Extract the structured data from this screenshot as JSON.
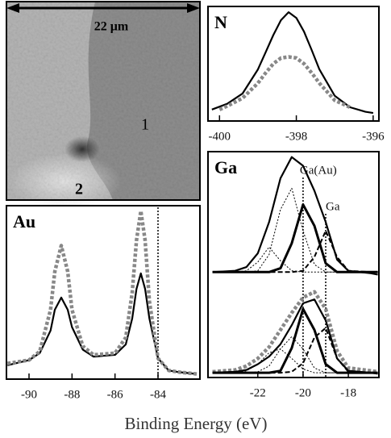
{
  "image": {
    "scale_bar": "22 μm",
    "labels": [
      "1",
      "2"
    ]
  },
  "xlabel": "Binding Energy (eV)",
  "chart_data": [
    {
      "type": "line",
      "title": "N",
      "xlim": [
        -400.3,
        -395.85
      ],
      "ylim": [
        0,
        1
      ],
      "xticks": [
        -400,
        -398,
        -396
      ],
      "series": [
        {
          "color": "#000000",
          "style": "solid",
          "x": [
            -400.2,
            -399.8,
            -399.4,
            -399,
            -398.8,
            -398.6,
            -398.4,
            -398.2,
            -398,
            -397.8,
            -397.6,
            -397.4,
            -397,
            -396.6,
            -396.2,
            -396
          ],
          "values": [
            0.1,
            0.15,
            0.24,
            0.45,
            0.6,
            0.75,
            0.88,
            0.95,
            0.9,
            0.78,
            0.62,
            0.45,
            0.22,
            0.12,
            0.08,
            0.07
          ]
        },
        {
          "color": "#888888",
          "style": "squares",
          "x": [
            -400,
            -399.8,
            -399.4,
            -399,
            -398.8,
            -398.6,
            -398.4,
            -398.2,
            -398,
            -397.8,
            -397.6,
            -397.4,
            -397,
            -396.6
          ],
          "values": [
            0.1,
            0.13,
            0.2,
            0.33,
            0.42,
            0.5,
            0.55,
            0.56,
            0.55,
            0.5,
            0.42,
            0.33,
            0.18,
            0.12
          ]
        }
      ]
    },
    {
      "type": "line",
      "title": "Au",
      "xlim": [
        -91.05,
        -82.05
      ],
      "ylim": [
        0,
        1
      ],
      "xticks": [
        -90,
        -88,
        -86,
        -84
      ],
      "vlines": [
        -84
      ],
      "series": [
        {
          "color": "#000000",
          "style": "solid",
          "x": [
            -91,
            -90,
            -89.5,
            -89,
            -88.8,
            -88.5,
            -88.2,
            -88,
            -87.5,
            -87,
            -86,
            -85.5,
            -85.2,
            -85,
            -84.8,
            -84.6,
            -84.4,
            -84,
            -83.5,
            -83,
            -82.2
          ],
          "values": [
            0.08,
            0.11,
            0.15,
            0.28,
            0.4,
            0.47,
            0.4,
            0.3,
            0.17,
            0.13,
            0.14,
            0.2,
            0.35,
            0.52,
            0.61,
            0.52,
            0.35,
            0.12,
            0.05,
            0.04,
            0.03
          ]
        },
        {
          "color": "#888888",
          "style": "squares",
          "x": [
            -91,
            -90,
            -89.5,
            -89,
            -88.8,
            -88.5,
            -88.2,
            -88,
            -87.5,
            -87,
            -86,
            -85.5,
            -85.2,
            -85,
            -84.8,
            -84.6,
            -84.4,
            -84,
            -83.5,
            -83,
            -82.2
          ],
          "values": [
            0.09,
            0.11,
            0.16,
            0.4,
            0.62,
            0.77,
            0.62,
            0.4,
            0.19,
            0.14,
            0.15,
            0.24,
            0.5,
            0.8,
            0.97,
            0.8,
            0.45,
            0.12,
            0.05,
            0.04,
            0.03
          ]
        }
      ]
    },
    {
      "type": "line",
      "title": "Ga",
      "xlim": [
        -24.2,
        -16.65
      ],
      "ylim": [
        0,
        1
      ],
      "annotations": [
        {
          "text": "Ga(Au)",
          "x": -20
        },
        {
          "text": "Ga",
          "x": -19
        }
      ],
      "series": [
        {
          "color": "#000000",
          "style": "dotted",
          "x": [
            -24,
            -23,
            -22.5,
            -22,
            -21.5,
            -21,
            -20.5,
            -20,
            -19.5,
            -19,
            -18.5,
            -18,
            -17,
            -16.7
          ],
          "values": [
            0.05,
            0.05,
            0.06,
            0.13,
            0.25,
            0.14,
            0.06,
            0.05,
            0.05,
            0.05,
            0.05,
            0.05,
            0.05,
            0.05
          ]
        },
        {
          "color": "#000000",
          "style": "dotted",
          "x": [
            -24,
            -23,
            -22.5,
            -22,
            -21.5,
            -21,
            -20.5,
            -20,
            -19.5,
            -19,
            -18.5,
            -18,
            -17,
            -16.7
          ],
          "values": [
            0.05,
            0.05,
            0.05,
            0.06,
            0.19,
            0.55,
            0.72,
            0.38,
            0.11,
            0.05,
            0.05,
            0.05,
            0.05,
            0.05
          ]
        },
        {
          "color": "#000000",
          "style": "thick",
          "x": [
            -24,
            -23,
            -22.5,
            -22,
            -21.5,
            -21,
            -20.5,
            -20,
            -19.5,
            -19,
            -18.5,
            -18,
            -17,
            -16.7
          ],
          "values": [
            0.05,
            0.05,
            0.05,
            0.05,
            0.05,
            0.08,
            0.28,
            0.59,
            0.42,
            0.12,
            0.05,
            0.05,
            0.05,
            0.05
          ]
        },
        {
          "color": "#000000",
          "style": "dashed",
          "x": [
            -24,
            -23,
            -22.5,
            -22,
            -21.5,
            -21,
            -20.5,
            -20,
            -19.5,
            -19,
            -18.5,
            -18,
            -17,
            -16.7
          ],
          "values": [
            0.05,
            0.05,
            0.05,
            0.05,
            0.05,
            0.05,
            0.05,
            0.06,
            0.17,
            0.38,
            0.17,
            0.06,
            0.05,
            0.05
          ]
        },
        {
          "color": "#000000",
          "style": "solid",
          "x": [
            -24,
            -23,
            -22.5,
            -22,
            -21.5,
            -21,
            -20.5,
            -20,
            -19.5,
            -19,
            -18.5,
            -18,
            -17,
            -16.7
          ],
          "values": [
            0.05,
            0.06,
            0.09,
            0.2,
            0.45,
            0.8,
            0.97,
            0.9,
            0.7,
            0.45,
            0.15,
            0.06,
            0.04,
            0.03
          ]
        }
      ]
    },
    {
      "type": "line",
      "xlim": [
        -24.2,
        -16.65
      ],
      "ylim": [
        0,
        1
      ],
      "xticks": [
        -22,
        -20,
        -18
      ],
      "series": [
        {
          "color": "#888888",
          "style": "squares",
          "x": [
            -24,
            -23,
            -22.5,
            -22,
            -21.5,
            -21,
            -20.5,
            -20,
            -19.5,
            -19,
            -18.5,
            -18,
            -17,
            -16.7
          ],
          "values": [
            0.06,
            0.08,
            0.12,
            0.2,
            0.32,
            0.5,
            0.68,
            0.84,
            0.9,
            0.72,
            0.28,
            0.1,
            0.07,
            0.06
          ]
        },
        {
          "color": "#000000",
          "style": "dotted",
          "x": [
            -24,
            -23,
            -22.5,
            -22,
            -21.5,
            -21,
            -20.5,
            -20,
            -19.5,
            -19,
            -18.5,
            -18,
            -17,
            -16.7
          ],
          "values": [
            0.05,
            0.05,
            0.07,
            0.14,
            0.26,
            0.3,
            0.2,
            0.09,
            0.05,
            0.05,
            0.05,
            0.05,
            0.05,
            0.05
          ]
        },
        {
          "color": "#000000",
          "style": "dotted",
          "x": [
            -24,
            -23,
            -22.5,
            -22,
            -21.5,
            -21,
            -20.5,
            -20,
            -19.5,
            -19,
            -18.5,
            -18,
            -17,
            -16.7
          ],
          "values": [
            0.05,
            0.05,
            0.05,
            0.06,
            0.12,
            0.3,
            0.43,
            0.3,
            0.1,
            0.05,
            0.05,
            0.05,
            0.05,
            0.05
          ]
        },
        {
          "color": "#000000",
          "style": "thick",
          "x": [
            -24,
            -23,
            -22.5,
            -22,
            -21.5,
            -21,
            -20.5,
            -20,
            -19.5,
            -19,
            -18.5,
            -18,
            -17,
            -16.7
          ],
          "values": [
            0.05,
            0.05,
            0.05,
            0.05,
            0.05,
            0.07,
            0.31,
            0.72,
            0.5,
            0.14,
            0.05,
            0.05,
            0.05,
            0.05
          ]
        },
        {
          "color": "#000000",
          "style": "dashed",
          "x": [
            -24,
            -23,
            -22.5,
            -22,
            -21.5,
            -21,
            -20.5,
            -20,
            -19.5,
            -19,
            -18.5,
            -18,
            -17,
            -16.7
          ],
          "values": [
            0.05,
            0.05,
            0.05,
            0.05,
            0.05,
            0.05,
            0.06,
            0.15,
            0.42,
            0.52,
            0.2,
            0.06,
            0.05,
            0.05
          ]
        },
        {
          "color": "#000000",
          "style": "solid",
          "x": [
            -24,
            -23,
            -22.5,
            -22,
            -21.5,
            -21,
            -20.5,
            -20,
            -19.5,
            -19,
            -18.5,
            -18,
            -17,
            -16.7
          ],
          "values": [
            0.05,
            0.06,
            0.08,
            0.14,
            0.22,
            0.35,
            0.55,
            0.78,
            0.82,
            0.6,
            0.2,
            0.07,
            0.05,
            0.04
          ]
        }
      ]
    }
  ]
}
